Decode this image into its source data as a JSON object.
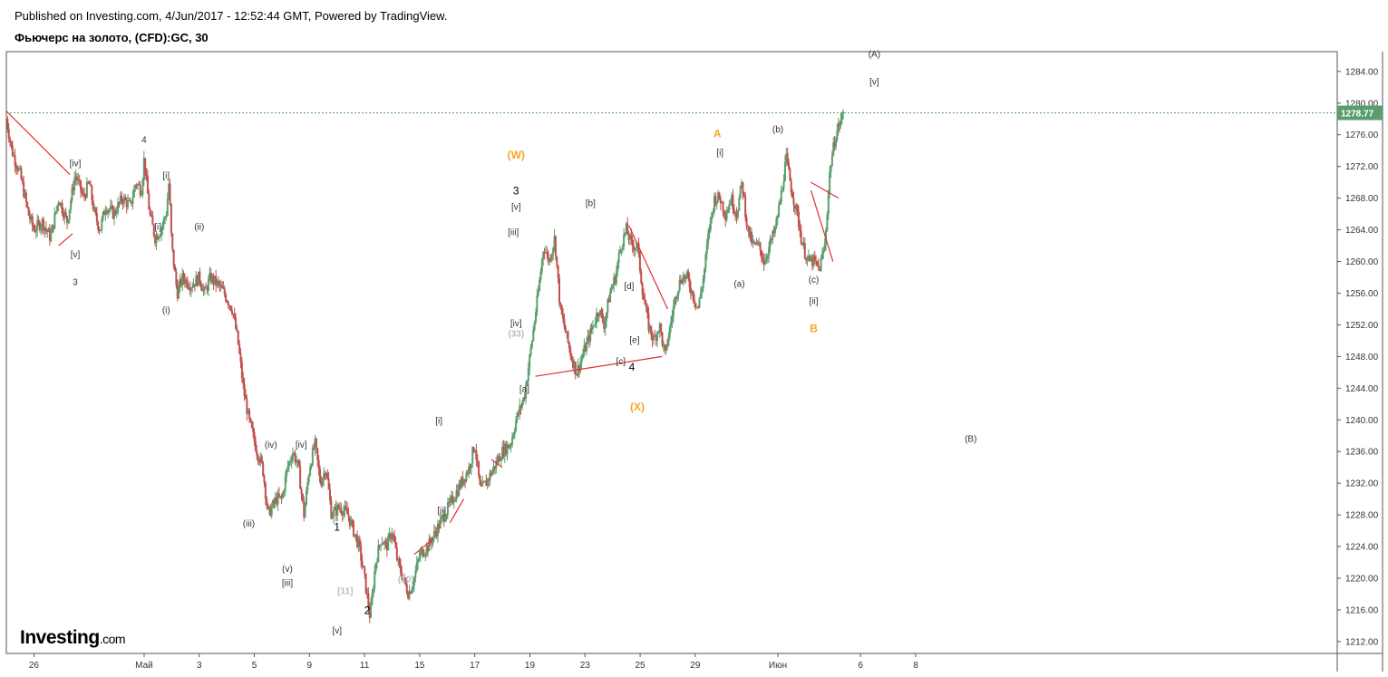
{
  "header": {
    "published": "Published on Investing.com, 4/Jun/2017 - 12:52:44 GMT, Powered by TradingView.",
    "title": "Фьючерс на золото, (CFD):GC, 30"
  },
  "logo": {
    "name": "Investing",
    "suffix": ".com"
  },
  "colors": {
    "up": "#5a9e6f",
    "down": "#c0504d",
    "trend": "#e03030",
    "orange": "#f5a623",
    "last": "#5a9e6f"
  },
  "chart_data": {
    "type": "candlestick",
    "title": "Фьючерс на золото, (CFD):GC, 30",
    "ylim": [
      1210.5,
      1286.5
    ],
    "xlim": [
      -1,
      47.3
    ],
    "last_price": 1278.77,
    "last_price_label": "1278.77",
    "yticks": [
      {
        "v": 1284,
        "t": "1284.00"
      },
      {
        "v": 1280,
        "t": "1280.00"
      },
      {
        "v": 1276,
        "t": "1276.00"
      },
      {
        "v": 1272,
        "t": "1272.00"
      },
      {
        "v": 1268,
        "t": "1268.00"
      },
      {
        "v": 1264,
        "t": "1264.00"
      },
      {
        "v": 1260,
        "t": "1260.00"
      },
      {
        "v": 1256,
        "t": "1256.00"
      },
      {
        "v": 1252,
        "t": "1252.00"
      },
      {
        "v": 1248,
        "t": "1248.00"
      },
      {
        "v": 1244,
        "t": "1244.00"
      },
      {
        "v": 1240,
        "t": "1240.00"
      },
      {
        "v": 1236,
        "t": "1236.00"
      },
      {
        "v": 1232,
        "t": "1232.00"
      },
      {
        "v": 1228,
        "t": "1228.00"
      },
      {
        "v": 1224,
        "t": "1224.00"
      },
      {
        "v": 1220,
        "t": "1220.00"
      },
      {
        "v": 1216,
        "t": "1216.00"
      },
      {
        "v": 1212,
        "t": "1212.00"
      }
    ],
    "xticks": [
      {
        "d": 0,
        "t": "26"
      },
      {
        "d": 4,
        "t": "Май"
      },
      {
        "d": 6,
        "t": "3"
      },
      {
        "d": 8,
        "t": "5"
      },
      {
        "d": 10,
        "t": "9"
      },
      {
        "d": 12,
        "t": "11"
      },
      {
        "d": 14,
        "t": "15"
      },
      {
        "d": 16,
        "t": "17"
      },
      {
        "d": 18,
        "t": "19"
      },
      {
        "d": 20,
        "t": "23"
      },
      {
        "d": 22,
        "t": "25"
      },
      {
        "d": 24,
        "t": "29"
      },
      {
        "d": 27,
        "t": "Июн"
      },
      {
        "d": 30,
        "t": "6"
      },
      {
        "d": 32,
        "t": "8"
      }
    ],
    "price_path": [
      [
        -1,
        1278
      ],
      [
        -0.8,
        1274
      ],
      [
        -0.5,
        1271
      ],
      [
        -0.2,
        1266
      ],
      [
        0,
        1264
      ],
      [
        0.3,
        1265
      ],
      [
        0.6,
        1263
      ],
      [
        0.9,
        1268
      ],
      [
        1.2,
        1265
      ],
      [
        1.5,
        1271
      ],
      [
        1.8,
        1268
      ],
      [
        2.0,
        1270
      ],
      [
        2.2,
        1266
      ],
      [
        2.4,
        1264
      ],
      [
        2.6,
        1267
      ],
      [
        2.9,
        1266
      ],
      [
        3.2,
        1268
      ],
      [
        3.5,
        1267
      ],
      [
        3.7,
        1270
      ],
      [
        3.9,
        1269
      ],
      [
        4.0,
        1273
      ],
      [
        4.2,
        1266
      ],
      [
        4.4,
        1263
      ],
      [
        4.6,
        1264
      ],
      [
        4.8,
        1266
      ],
      [
        4.9,
        1270
      ],
      [
        5.0,
        1262
      ],
      [
        5.2,
        1256
      ],
      [
        5.4,
        1258
      ],
      [
        5.7,
        1257
      ],
      [
        6.0,
        1258
      ],
      [
        6.2,
        1256
      ],
      [
        6.4,
        1258
      ],
      [
        6.7,
        1257
      ],
      [
        6.9,
        1256
      ],
      [
        7.2,
        1254
      ],
      [
        7.4,
        1250
      ],
      [
        7.6,
        1244
      ],
      [
        7.8,
        1240
      ],
      [
        8.1,
        1236
      ],
      [
        8.3,
        1234
      ],
      [
        8.5,
        1228
      ],
      [
        8.8,
        1230
      ],
      [
        9.0,
        1230
      ],
      [
        9.2,
        1234
      ],
      [
        9.4,
        1236
      ],
      [
        9.6,
        1234
      ],
      [
        9.8,
        1228
      ],
      [
        10.0,
        1234
      ],
      [
        10.2,
        1237
      ],
      [
        10.4,
        1232
      ],
      [
        10.6,
        1234
      ],
      [
        10.8,
        1228
      ],
      [
        11.1,
        1229
      ],
      [
        11.4,
        1228
      ],
      [
        11.6,
        1226
      ],
      [
        11.8,
        1224
      ],
      [
        12.0,
        1220
      ],
      [
        12.2,
        1215
      ],
      [
        12.4,
        1222
      ],
      [
        12.6,
        1225
      ],
      [
        12.8,
        1224
      ],
      [
        13.0,
        1226
      ],
      [
        13.2,
        1222
      ],
      [
        13.4,
        1220
      ],
      [
        13.6,
        1218
      ],
      [
        13.8,
        1220
      ],
      [
        14.0,
        1223
      ],
      [
        14.3,
        1224
      ],
      [
        14.6,
        1226
      ],
      [
        14.9,
        1228
      ],
      [
        15.2,
        1230
      ],
      [
        15.5,
        1232
      ],
      [
        15.8,
        1234
      ],
      [
        16.0,
        1237
      ],
      [
        16.2,
        1231
      ],
      [
        16.4,
        1232
      ],
      [
        16.7,
        1234
      ],
      [
        17.0,
        1236
      ],
      [
        17.3,
        1237
      ],
      [
        17.5,
        1240
      ],
      [
        17.8,
        1243
      ],
      [
        18.0,
        1248
      ],
      [
        18.3,
        1256
      ],
      [
        18.5,
        1262
      ],
      [
        18.7,
        1260
      ],
      [
        18.9,
        1263
      ],
      [
        19.1,
        1254
      ],
      [
        19.3,
        1251
      ],
      [
        19.5,
        1248
      ],
      [
        19.7,
        1246
      ],
      [
        19.9,
        1248
      ],
      [
        20.1,
        1250
      ],
      [
        20.3,
        1252
      ],
      [
        20.5,
        1254
      ],
      [
        20.7,
        1252
      ],
      [
        20.9,
        1256
      ],
      [
        21.1,
        1258
      ],
      [
        21.3,
        1262
      ],
      [
        21.5,
        1264
      ],
      [
        21.7,
        1262
      ],
      [
        21.9,
        1262
      ],
      [
        22.1,
        1256
      ],
      [
        22.3,
        1252
      ],
      [
        22.5,
        1250
      ],
      [
        22.7,
        1252
      ],
      [
        22.9,
        1248
      ],
      [
        23.1,
        1252
      ],
      [
        23.3,
        1256
      ],
      [
        23.5,
        1258
      ],
      [
        23.7,
        1258
      ],
      [
        23.9,
        1256
      ],
      [
        24.1,
        1254
      ],
      [
        24.3,
        1258
      ],
      [
        24.5,
        1264
      ],
      [
        24.7,
        1268
      ],
      [
        24.9,
        1268
      ],
      [
        25.1,
        1266
      ],
      [
        25.3,
        1268
      ],
      [
        25.5,
        1266
      ],
      [
        25.7,
        1270
      ],
      [
        25.9,
        1264
      ],
      [
        26.1,
        1262
      ],
      [
        26.3,
        1262
      ],
      [
        26.5,
        1260
      ],
      [
        26.7,
        1262
      ],
      [
        26.9,
        1264
      ],
      [
        27.1,
        1268
      ],
      [
        27.3,
        1273
      ],
      [
        27.5,
        1269
      ],
      [
        27.7,
        1266
      ],
      [
        27.9,
        1262
      ],
      [
        28.1,
        1260
      ],
      [
        28.3,
        1260
      ],
      [
        28.5,
        1259
      ],
      [
        28.7,
        1262
      ],
      [
        28.9,
        1272
      ],
      [
        29.1,
        1276
      ],
      [
        29.3,
        1278
      ],
      [
        29.4,
        1279
      ]
    ],
    "trend_lines": [
      [
        [
          -1,
          1279
        ],
        [
          1.3,
          1271
        ]
      ],
      [
        [
          0.9,
          1262
        ],
        [
          1.4,
          1263.5
        ]
      ],
      [
        [
          18.2,
          1245.5
        ],
        [
          22.8,
          1248
        ]
      ],
      [
        [
          21.6,
          1264.5
        ],
        [
          23.0,
          1254
        ]
      ],
      [
        [
          28.2,
          1270
        ],
        [
          29.2,
          1268
        ]
      ],
      [
        [
          28.2,
          1269
        ],
        [
          29.0,
          1260
        ]
      ],
      [
        [
          13.8,
          1223
        ],
        [
          14.5,
          1225
        ]
      ],
      [
        [
          15.1,
          1227
        ],
        [
          15.6,
          1230
        ]
      ],
      [
        [
          16.6,
          1235
        ],
        [
          17.0,
          1234
        ]
      ]
    ],
    "annotations": [
      {
        "d": 4.0,
        "p": 1275,
        "t": "4",
        "c": "lbl"
      },
      {
        "d": 1.5,
        "p": 1272,
        "t": "[iv]",
        "c": "lbl"
      },
      {
        "d": 4.8,
        "p": 1270.5,
        "t": "[i]",
        "c": "lbl"
      },
      {
        "d": 4.5,
        "p": 1264,
        "t": "[i]",
        "c": "lbl"
      },
      {
        "d": 1.5,
        "p": 1260.5,
        "t": "[v]",
        "c": "lbl"
      },
      {
        "d": 1.5,
        "p": 1257,
        "t": "3",
        "c": "lbl"
      },
      {
        "d": 6.0,
        "p": 1264,
        "t": "(ii)",
        "c": "lbl"
      },
      {
        "d": 4.8,
        "p": 1253.5,
        "t": "(i)",
        "c": "lbl"
      },
      {
        "d": 8.6,
        "p": 1236.5,
        "t": "(iv)",
        "c": "lbl"
      },
      {
        "d": 9.7,
        "p": 1236.5,
        "t": "[iv]",
        "c": "lbl"
      },
      {
        "d": 7.8,
        "p": 1226.5,
        "t": "(iii)",
        "c": "lbl"
      },
      {
        "d": 9.2,
        "p": 1220.8,
        "t": "(v)",
        "c": "lbl"
      },
      {
        "d": 9.2,
        "p": 1219,
        "t": "[iii]",
        "c": "lbl"
      },
      {
        "d": 11.0,
        "p": 1226,
        "t": "1",
        "c": "lblB"
      },
      {
        "d": 11.3,
        "p": 1218,
        "t": "[11]",
        "c": "lblG"
      },
      {
        "d": 11.0,
        "p": 1213,
        "t": "[v]",
        "c": "lbl"
      },
      {
        "d": 12.1,
        "p": 1215.5,
        "t": "2",
        "c": "lblB"
      },
      {
        "d": 13.5,
        "p": 1219.5,
        "t": "(20)",
        "c": "lblG"
      },
      {
        "d": 14.7,
        "p": 1239.5,
        "t": "[i]",
        "c": "lbl"
      },
      {
        "d": 14.8,
        "p": 1228.2,
        "t": "[ii]",
        "c": "lbl"
      },
      {
        "d": 17.5,
        "p": 1250.5,
        "t": "(33)",
        "c": "lblG"
      },
      {
        "d": 17.4,
        "p": 1263.3,
        "t": "[iii]",
        "c": "lbl"
      },
      {
        "d": 17.5,
        "p": 1251.8,
        "t": "[iv]",
        "c": "lbl"
      },
      {
        "d": 17.5,
        "p": 1273,
        "t": "(W)",
        "c": "lblO"
      },
      {
        "d": 17.5,
        "p": 1268.5,
        "t": "3",
        "c": "lblB"
      },
      {
        "d": 17.5,
        "p": 1266.5,
        "t": "[v]",
        "c": "lbl"
      },
      {
        "d": 17.8,
        "p": 1243.5,
        "t": "[a]",
        "c": "lbl"
      },
      {
        "d": 20.2,
        "p": 1267,
        "t": "[b]",
        "c": "lbl"
      },
      {
        "d": 21.3,
        "p": 1247,
        "t": "[c]",
        "c": "lbl"
      },
      {
        "d": 21.6,
        "p": 1256.5,
        "t": "[d]",
        "c": "lbl"
      },
      {
        "d": 21.8,
        "p": 1249.7,
        "t": "[e]",
        "c": "lbl"
      },
      {
        "d": 21.7,
        "p": 1246.2,
        "t": "4",
        "c": "lblB"
      },
      {
        "d": 21.9,
        "p": 1241.2,
        "t": "(X)",
        "c": "lblO"
      },
      {
        "d": 24.8,
        "p": 1275.7,
        "t": "A",
        "c": "lblO"
      },
      {
        "d": 24.9,
        "p": 1273.4,
        "t": "[i]",
        "c": "lbl"
      },
      {
        "d": 25.6,
        "p": 1256.8,
        "t": "(a)",
        "c": "lbl"
      },
      {
        "d": 27.0,
        "p": 1276.3,
        "t": "(b)",
        "c": "lbl"
      },
      {
        "d": 28.3,
        "p": 1257.3,
        "t": "(c)",
        "c": "lbl"
      },
      {
        "d": 28.3,
        "p": 1254.6,
        "t": "[ii]",
        "c": "lbl"
      },
      {
        "d": 28.3,
        "p": 1251.1,
        "t": "B",
        "c": "lblO"
      },
      {
        "d": 30.5,
        "p": 1285.8,
        "t": "(A)",
        "c": "lbl"
      },
      {
        "d": 30.5,
        "p": 1282.3,
        "t": "[v]",
        "c": "lbl"
      },
      {
        "d": 34.0,
        "p": 1237.2,
        "t": "(B)",
        "c": "lbl"
      }
    ]
  }
}
